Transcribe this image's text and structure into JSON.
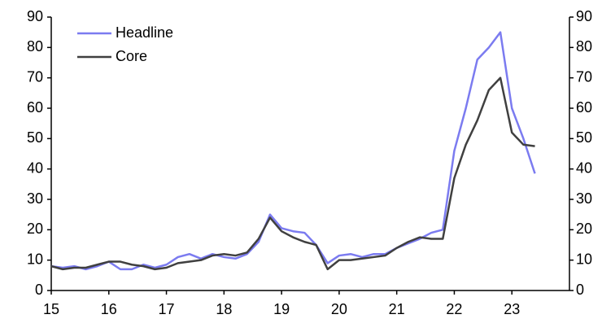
{
  "chart_data": {
    "type": "line",
    "x": [
      15.0,
      15.2,
      15.4,
      15.6,
      15.8,
      16.0,
      16.2,
      16.4,
      16.6,
      16.8,
      17.0,
      17.2,
      17.4,
      17.6,
      17.8,
      18.0,
      18.2,
      18.4,
      18.6,
      18.8,
      19.0,
      19.2,
      19.4,
      19.6,
      19.8,
      20.0,
      20.2,
      20.4,
      20.6,
      20.8,
      21.0,
      21.2,
      21.4,
      21.6,
      21.8,
      22.0,
      22.2,
      22.4,
      22.6,
      22.8,
      23.0,
      23.2,
      23.4
    ],
    "series": [
      {
        "name": "Headline",
        "color": "#7b7bf0",
        "values": [
          8,
          7.5,
          8,
          7,
          8,
          9.5,
          7,
          7,
          8.5,
          7.5,
          8.5,
          11,
          12,
          10.5,
          12,
          11,
          10.5,
          12,
          16,
          25,
          20.5,
          19.5,
          19,
          15,
          9,
          11.5,
          12,
          11,
          12,
          12,
          14,
          15.5,
          17,
          19,
          20,
          46,
          60,
          76,
          80,
          85,
          60,
          50,
          38.5
        ]
      },
      {
        "name": "Core",
        "color": "#404040",
        "values": [
          8,
          7,
          7.5,
          7.5,
          8.5,
          9.5,
          9.5,
          8.5,
          8,
          7,
          7.5,
          9,
          9.5,
          10,
          11.5,
          12,
          11.5,
          12.5,
          17,
          24,
          19.5,
          17.5,
          16,
          15,
          7,
          10,
          10,
          10.5,
          11,
          11.5,
          14,
          16,
          17.5,
          17,
          17,
          37,
          48,
          56,
          66,
          70,
          52,
          48,
          47.5
        ]
      }
    ],
    "xlim": [
      15,
      24
    ],
    "xticks": [
      15,
      16,
      17,
      18,
      19,
      20,
      21,
      22,
      23
    ],
    "ylim": [
      0,
      90
    ],
    "yticks": [
      0,
      10,
      20,
      30,
      40,
      50,
      60,
      70,
      80,
      90
    ],
    "y2lim": [
      0,
      90
    ],
    "y2ticks": [
      0,
      10,
      20,
      30,
      40,
      50,
      60,
      70,
      80,
      90
    ],
    "legend": "top-left"
  }
}
